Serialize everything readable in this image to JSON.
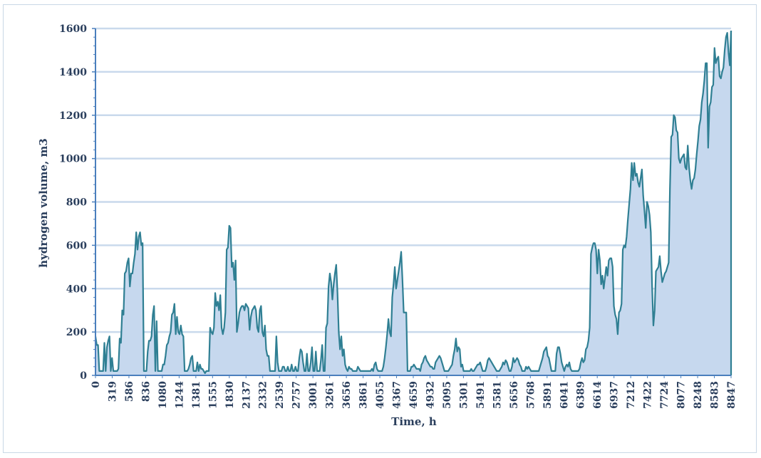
{
  "chart_data": {
    "type": "area",
    "title": "",
    "xlabel": "Time, h",
    "ylabel": "hydrogen volume, m3",
    "ylim": [
      0,
      1600
    ],
    "yticks": [
      0,
      200,
      400,
      600,
      800,
      1000,
      1200,
      1400,
      1600
    ],
    "x_tick_labels": [
      "0",
      "319",
      "586",
      "836",
      "1080",
      "1244",
      "1381",
      "1555",
      "1830",
      "2137",
      "2332",
      "2539",
      "2757",
      "3001",
      "3261",
      "3656",
      "3861",
      "4055",
      "4367",
      "4659",
      "4932",
      "5095",
      "5301",
      "5491",
      "5581",
      "5656",
      "5768",
      "5891",
      "6041",
      "6389",
      "6614",
      "6937",
      "7212",
      "7422",
      "7724",
      "8077",
      "8248",
      "8583",
      "8847"
    ],
    "grid": true,
    "legend": "none",
    "colors": {
      "line": "#2f7f93",
      "fill": "#c6d8ee",
      "grid": "#c9d9ec",
      "axis": "#4a7fbd"
    },
    "series": [
      {
        "values": [
          180,
          140,
          140,
          20,
          20,
          20,
          20,
          150,
          20,
          130,
          160,
          180,
          20,
          80,
          20,
          20,
          20,
          20,
          30,
          170,
          150,
          300,
          280,
          470,
          480,
          520,
          540,
          410,
          470,
          470,
          520,
          560,
          660,
          580,
          640,
          660,
          600,
          610,
          20,
          20,
          20,
          110,
          160,
          160,
          180,
          280,
          320,
          20,
          250,
          20,
          20,
          20,
          20,
          50,
          50,
          90,
          140,
          150,
          180,
          200,
          280,
          290,
          330,
          190,
          270,
          200,
          190,
          230,
          190,
          180,
          20,
          20,
          20,
          30,
          50,
          80,
          90,
          20,
          20,
          20,
          60,
          20,
          50,
          30,
          30,
          20,
          10,
          20,
          20,
          20,
          220,
          200,
          190,
          220,
          380,
          320,
          340,
          300,
          370,
          220,
          190,
          220,
          290,
          580,
          590,
          690,
          680,
          500,
          520,
          440,
          530,
          200,
          240,
          290,
          310,
          320,
          320,
          300,
          330,
          320,
          310,
          210,
          270,
          300,
          310,
          320,
          300,
          220,
          200,
          300,
          320,
          200,
          180,
          230,
          120,
          90,
          90,
          20,
          20,
          20,
          20,
          20,
          180,
          60,
          20,
          20,
          20,
          40,
          40,
          20,
          20,
          40,
          20,
          20,
          50,
          20,
          20,
          40,
          20,
          20,
          80,
          120,
          110,
          60,
          20,
          20,
          100,
          20,
          20,
          60,
          130,
          20,
          20,
          110,
          20,
          20,
          20,
          70,
          140,
          20,
          20,
          220,
          240,
          410,
          470,
          430,
          350,
          420,
          470,
          510,
          380,
          200,
          120,
          180,
          90,
          120,
          50,
          30,
          20,
          40,
          30,
          30,
          20,
          20,
          20,
          20,
          40,
          30,
          20,
          20,
          20,
          20,
          20,
          20,
          20,
          20,
          20,
          30,
          20,
          50,
          60,
          30,
          20,
          20,
          20,
          20,
          40,
          80,
          130,
          190,
          260,
          200,
          180,
          360,
          420,
          500,
          400,
          440,
          480,
          520,
          570,
          440,
          290,
          290,
          290,
          20,
          20,
          20,
          40,
          40,
          50,
          40,
          30,
          30,
          30,
          20,
          50,
          60,
          80,
          90,
          70,
          60,
          50,
          40,
          40,
          30,
          30,
          60,
          70,
          80,
          90,
          80,
          60,
          40,
          20,
          20,
          20,
          20,
          30,
          40,
          50,
          90,
          120,
          170,
          110,
          130,
          120,
          40,
          50,
          20,
          20,
          20,
          20,
          20,
          20,
          30,
          20,
          20,
          30,
          40,
          50,
          50,
          60,
          40,
          20,
          20,
          20,
          40,
          70,
          80,
          70,
          60,
          50,
          40,
          30,
          20,
          20,
          20,
          30,
          40,
          60,
          50,
          70,
          60,
          40,
          20,
          20,
          40,
          80,
          60,
          70,
          80,
          70,
          50,
          40,
          20,
          20,
          20,
          40,
          30,
          40,
          30,
          20,
          20,
          20,
          20,
          20,
          20,
          20,
          40,
          60,
          80,
          110,
          120,
          130,
          90,
          80,
          50,
          20,
          20,
          20,
          20,
          100,
          130,
          130,
          100,
          60,
          40,
          20,
          40,
          50,
          40,
          60,
          30,
          20,
          20,
          20,
          20,
          20,
          20,
          30,
          60,
          80,
          60,
          70,
          120,
          130,
          160,
          220,
          560,
          590,
          610,
          610,
          580,
          470,
          580,
          530,
          420,
          460,
          400,
          450,
          500,
          460,
          530,
          540,
          540,
          500,
          320,
          280,
          260,
          190,
          290,
          300,
          330,
          580,
          600,
          590,
          640,
          720,
          790,
          860,
          980,
          900,
          980,
          920,
          930,
          890,
          870,
          910,
          950,
          830,
          760,
          680,
          800,
          780,
          740,
          660,
          410,
          230,
          300,
          480,
          490,
          500,
          550,
          480,
          430,
          450,
          470,
          480,
          500,
          520,
          860,
          1100,
          1110,
          1200,
          1190,
          1130,
          1120,
          1000,
          980,
          1000,
          1010,
          1020,
          960,
          950,
          1060,
          960,
          900,
          860,
          900,
          910,
          950,
          1020,
          1080,
          1150,
          1180,
          1260,
          1300,
          1360,
          1440,
          1440,
          1050,
          1240,
          1260,
          1330,
          1340,
          1510,
          1440,
          1460,
          1470,
          1380,
          1370,
          1400,
          1420,
          1500,
          1560,
          1580,
          1490,
          1430,
          1590
        ]
      }
    ]
  }
}
